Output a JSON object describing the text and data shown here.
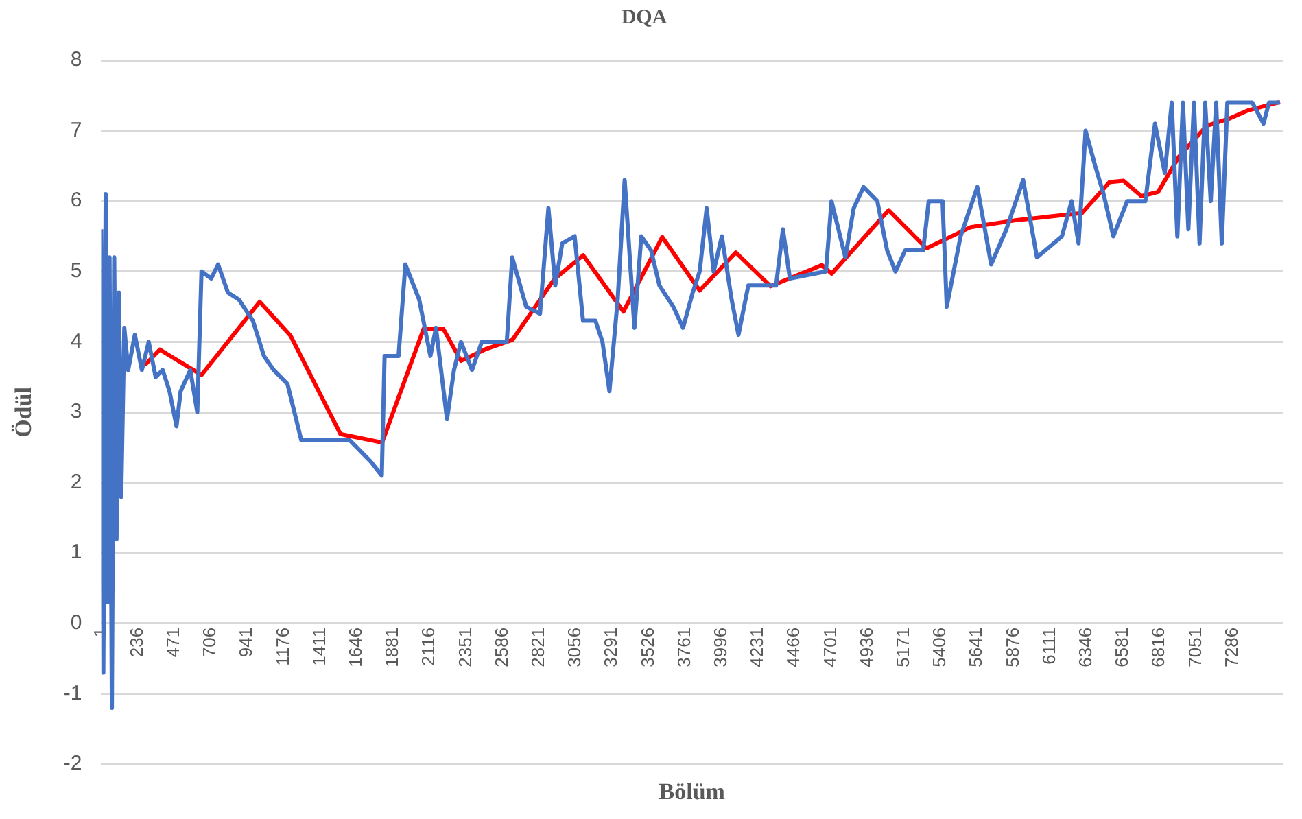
{
  "chart_data": {
    "type": "line",
    "title": "DQA",
    "xlabel": "Bölüm",
    "ylabel": "Ödül",
    "xlim": [
      1,
      7610
    ],
    "xticks": [
      1,
      236,
      471,
      706,
      941,
      1176,
      1411,
      1646,
      1881,
      2116,
      2351,
      2586,
      2821,
      3056,
      3291,
      3526,
      3761,
      3996,
      4231,
      4466,
      4701,
      4936,
      5171,
      5406,
      5641,
      5876,
      6111,
      6346,
      6581,
      6816,
      7051,
      7286
    ],
    "ylim": [
      -2,
      8
    ],
    "yticks": [
      -2,
      -1,
      0,
      1,
      2,
      3,
      4,
      5,
      6,
      7,
      8
    ],
    "grid": "y",
    "marker": "none",
    "line_style": "solid",
    "series": [
      {
        "color": "#4472c4",
        "x": [
          1,
          15,
          30,
          45,
          55,
          70,
          85,
          100,
          115,
          130,
          150,
          175,
          218,
          263,
          307,
          352,
          397,
          441,
          486,
          513,
          575,
          620,
          647,
          710,
          754,
          817,
          888,
          978,
          1049,
          1112,
          1201,
          1290,
          1425,
          1603,
          1737,
          1808,
          1826,
          1916,
          1960,
          2049,
          2121,
          2157,
          2228,
          2273,
          2318,
          2389,
          2452,
          2613,
          2648,
          2738,
          2827,
          2881,
          2925,
          2970,
          3050,
          3104,
          3184,
          3229,
          3274,
          3327,
          3372,
          3435,
          3479,
          3542,
          3596,
          3685,
          3748,
          3810,
          3855,
          3900,
          3945,
          3998,
          4061,
          4105,
          4168,
          4347,
          4391,
          4436,
          4668,
          4704,
          4793,
          4847,
          4910,
          4999,
          5062,
          5116,
          5178,
          5294,
          5330,
          5419,
          5446,
          5535,
          5643,
          5732,
          5830,
          5938,
          6027,
          6188,
          6250,
          6295,
          6340,
          6402,
          6456,
          6519,
          6608,
          6725,
          6787,
          6850,
          6895,
          6931,
          6967,
          7002,
          7038,
          7074,
          7110,
          7146,
          7181,
          7217,
          7253,
          7414,
          7486,
          7521,
          7592
        ],
        "values": [
          5.6,
          -0.7,
          6.1,
          0.3,
          5.2,
          -1.2,
          5.2,
          1.2,
          4.7,
          1.8,
          4.2,
          3.6,
          4.1,
          3.6,
          4.0,
          3.5,
          3.6,
          3.3,
          2.8,
          3.3,
          3.6,
          3.0,
          5.0,
          4.9,
          5.1,
          4.7,
          4.6,
          4.3,
          3.8,
          3.6,
          3.4,
          2.6,
          2.6,
          2.6,
          2.3,
          2.1,
          3.8,
          3.8,
          5.1,
          4.6,
          3.8,
          4.2,
          2.9,
          3.6,
          4.0,
          3.6,
          4.0,
          4.0,
          5.2,
          4.5,
          4.4,
          5.9,
          4.8,
          5.4,
          5.5,
          4.3,
          4.3,
          4.0,
          3.3,
          4.6,
          6.3,
          4.2,
          5.5,
          5.3,
          4.8,
          4.5,
          4.2,
          4.7,
          5.0,
          5.9,
          5.0,
          5.5,
          4.6,
          4.1,
          4.8,
          4.8,
          5.6,
          4.9,
          5.0,
          6.0,
          5.2,
          5.9,
          6.2,
          6.0,
          5.3,
          5.0,
          5.3,
          5.3,
          6.0,
          6.0,
          4.5,
          5.5,
          6.2,
          5.1,
          5.6,
          6.3,
          5.2,
          5.5,
          6.0,
          5.4,
          7.0,
          6.5,
          6.1,
          5.5,
          6.0,
          6.0,
          7.1,
          6.4,
          7.4,
          5.5,
          7.4,
          5.6,
          7.4,
          5.4,
          7.4,
          6.0,
          7.4,
          5.4,
          7.4,
          7.4,
          7.1,
          7.4,
          7.4
        ]
      },
      {
        "color": "#ff0000",
        "x": [
          282,
          379,
          647,
          1022,
          1220,
          1542,
          1810,
          2078,
          2203,
          2318,
          2470,
          2650,
          2918,
          3105,
          3364,
          3614,
          3855,
          4088,
          4312,
          4642,
          4705,
          5072,
          5315,
          5601,
          5896,
          6316,
          6494,
          6584,
          6700,
          6807,
          6941,
          7120,
          7262,
          7388,
          7592
        ],
        "values": [
          3.67,
          3.89,
          3.53,
          4.57,
          4.09,
          2.69,
          2.57,
          4.19,
          4.19,
          3.73,
          3.89,
          4.03,
          4.89,
          5.23,
          4.43,
          5.49,
          4.73,
          5.27,
          4.79,
          5.09,
          4.97,
          5.87,
          5.33,
          5.63,
          5.73,
          5.83,
          6.27,
          6.29,
          6.07,
          6.13,
          6.63,
          7.07,
          7.17,
          7.29,
          7.41
        ]
      }
    ]
  }
}
